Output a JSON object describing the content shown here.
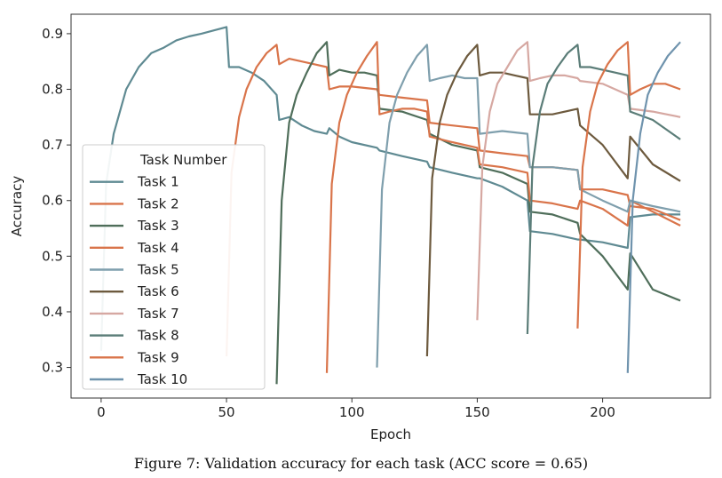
{
  "caption": "Figure 7: Validation accuracy for each task (ACC score = 0.65)",
  "chart_data": {
    "type": "line",
    "title": "",
    "xlabel": "Epoch",
    "ylabel": "Accuracy",
    "xlim": [
      -12,
      243
    ],
    "ylim": [
      0.245,
      0.935
    ],
    "xticks": [
      0,
      50,
      100,
      150,
      200
    ],
    "yticks": [
      0.3,
      0.4,
      0.5,
      0.6,
      0.7,
      0.8,
      0.9
    ],
    "grid": false,
    "legend": {
      "title": "Task Number",
      "placement": "lower-left"
    },
    "series": [
      {
        "name": "Task 1",
        "color": "#5f8a92",
        "points": [
          [
            0,
            0.33
          ],
          [
            2,
            0.63
          ],
          [
            5,
            0.72
          ],
          [
            10,
            0.8
          ],
          [
            15,
            0.84
          ],
          [
            20,
            0.865
          ],
          [
            25,
            0.875
          ],
          [
            30,
            0.888
          ],
          [
            35,
            0.895
          ],
          [
            40,
            0.9
          ],
          [
            45,
            0.906
          ],
          [
            50,
            0.912
          ],
          [
            51,
            0.84
          ],
          [
            55,
            0.84
          ],
          [
            60,
            0.83
          ],
          [
            65,
            0.815
          ],
          [
            70,
            0.79
          ],
          [
            71,
            0.745
          ],
          [
            75,
            0.75
          ],
          [
            80,
            0.735
          ],
          [
            85,
            0.725
          ],
          [
            90,
            0.72
          ],
          [
            91,
            0.73
          ],
          [
            95,
            0.715
          ],
          [
            100,
            0.705
          ],
          [
            110,
            0.695
          ],
          [
            111,
            0.69
          ],
          [
            120,
            0.68
          ],
          [
            130,
            0.67
          ],
          [
            131,
            0.66
          ],
          [
            140,
            0.65
          ],
          [
            150,
            0.64
          ],
          [
            151,
            0.64
          ],
          [
            160,
            0.625
          ],
          [
            170,
            0.6
          ],
          [
            171,
            0.545
          ],
          [
            180,
            0.54
          ],
          [
            190,
            0.53
          ],
          [
            191,
            0.53
          ],
          [
            200,
            0.525
          ],
          [
            210,
            0.515
          ],
          [
            211,
            0.57
          ],
          [
            220,
            0.575
          ],
          [
            231,
            0.575
          ]
        ]
      },
      {
        "name": "Task 2",
        "color": "#d9744a",
        "points": [
          [
            50,
            0.32
          ],
          [
            52,
            0.65
          ],
          [
            55,
            0.75
          ],
          [
            58,
            0.8
          ],
          [
            62,
            0.84
          ],
          [
            66,
            0.865
          ],
          [
            70,
            0.88
          ],
          [
            71,
            0.845
          ],
          [
            75,
            0.855
          ],
          [
            80,
            0.85
          ],
          [
            85,
            0.845
          ],
          [
            90,
            0.84
          ],
          [
            91,
            0.8
          ],
          [
            95,
            0.805
          ],
          [
            100,
            0.805
          ],
          [
            110,
            0.8
          ],
          [
            111,
            0.79
          ],
          [
            120,
            0.785
          ],
          [
            130,
            0.78
          ],
          [
            131,
            0.74
          ],
          [
            140,
            0.735
          ],
          [
            150,
            0.73
          ],
          [
            151,
            0.69
          ],
          [
            160,
            0.685
          ],
          [
            170,
            0.68
          ],
          [
            171,
            0.66
          ],
          [
            180,
            0.66
          ],
          [
            190,
            0.655
          ],
          [
            191,
            0.62
          ],
          [
            200,
            0.62
          ],
          [
            210,
            0.61
          ],
          [
            211,
            0.59
          ],
          [
            220,
            0.585
          ],
          [
            231,
            0.565
          ]
        ]
      },
      {
        "name": "Task 3",
        "color": "#4f6e5a",
        "points": [
          [
            70,
            0.27
          ],
          [
            72,
            0.6
          ],
          [
            75,
            0.74
          ],
          [
            78,
            0.79
          ],
          [
            82,
            0.83
          ],
          [
            86,
            0.865
          ],
          [
            90,
            0.885
          ],
          [
            91,
            0.825
          ],
          [
            95,
            0.835
          ],
          [
            100,
            0.83
          ],
          [
            105,
            0.83
          ],
          [
            110,
            0.825
          ],
          [
            111,
            0.765
          ],
          [
            120,
            0.76
          ],
          [
            130,
            0.745
          ],
          [
            131,
            0.72
          ],
          [
            140,
            0.7
          ],
          [
            150,
            0.69
          ],
          [
            151,
            0.66
          ],
          [
            160,
            0.65
          ],
          [
            170,
            0.63
          ],
          [
            171,
            0.58
          ],
          [
            180,
            0.575
          ],
          [
            190,
            0.56
          ],
          [
            191,
            0.54
          ],
          [
            200,
            0.5
          ],
          [
            210,
            0.44
          ],
          [
            211,
            0.505
          ],
          [
            220,
            0.44
          ],
          [
            231,
            0.42
          ]
        ]
      },
      {
        "name": "Task 4",
        "color": "#d9744a",
        "points": [
          [
            90,
            0.29
          ],
          [
            92,
            0.63
          ],
          [
            95,
            0.74
          ],
          [
            98,
            0.79
          ],
          [
            102,
            0.83
          ],
          [
            106,
            0.86
          ],
          [
            110,
            0.885
          ],
          [
            111,
            0.755
          ],
          [
            115,
            0.76
          ],
          [
            120,
            0.765
          ],
          [
            125,
            0.765
          ],
          [
            130,
            0.76
          ],
          [
            131,
            0.715
          ],
          [
            140,
            0.705
          ],
          [
            150,
            0.695
          ],
          [
            151,
            0.665
          ],
          [
            160,
            0.66
          ],
          [
            170,
            0.65
          ],
          [
            171,
            0.6
          ],
          [
            180,
            0.595
          ],
          [
            190,
            0.585
          ],
          [
            191,
            0.6
          ],
          [
            200,
            0.585
          ],
          [
            210,
            0.555
          ],
          [
            211,
            0.6
          ],
          [
            220,
            0.58
          ],
          [
            231,
            0.555
          ]
        ]
      },
      {
        "name": "Task 5",
        "color": "#7f9fad",
        "points": [
          [
            110,
            0.3
          ],
          [
            112,
            0.62
          ],
          [
            115,
            0.74
          ],
          [
            118,
            0.79
          ],
          [
            122,
            0.83
          ],
          [
            126,
            0.86
          ],
          [
            130,
            0.88
          ],
          [
            131,
            0.815
          ],
          [
            135,
            0.82
          ],
          [
            140,
            0.825
          ],
          [
            145,
            0.82
          ],
          [
            150,
            0.82
          ],
          [
            151,
            0.72
          ],
          [
            160,
            0.725
          ],
          [
            170,
            0.72
          ],
          [
            171,
            0.66
          ],
          [
            180,
            0.66
          ],
          [
            190,
            0.655
          ],
          [
            191,
            0.62
          ],
          [
            200,
            0.6
          ],
          [
            210,
            0.58
          ],
          [
            211,
            0.6
          ],
          [
            220,
            0.59
          ],
          [
            231,
            0.58
          ]
        ]
      },
      {
        "name": "Task 6",
        "color": "#6d5a3e",
        "points": [
          [
            130,
            0.32
          ],
          [
            132,
            0.64
          ],
          [
            135,
            0.74
          ],
          [
            138,
            0.79
          ],
          [
            142,
            0.83
          ],
          [
            146,
            0.86
          ],
          [
            150,
            0.88
          ],
          [
            151,
            0.825
          ],
          [
            155,
            0.83
          ],
          [
            160,
            0.83
          ],
          [
            165,
            0.825
          ],
          [
            170,
            0.82
          ],
          [
            171,
            0.755
          ],
          [
            180,
            0.755
          ],
          [
            190,
            0.765
          ],
          [
            191,
            0.735
          ],
          [
            200,
            0.7
          ],
          [
            210,
            0.64
          ],
          [
            211,
            0.715
          ],
          [
            220,
            0.665
          ],
          [
            231,
            0.635
          ]
        ]
      },
      {
        "name": "Task 7",
        "color": "#d6a8a2",
        "points": [
          [
            150,
            0.385
          ],
          [
            152,
            0.66
          ],
          [
            155,
            0.76
          ],
          [
            158,
            0.81
          ],
          [
            162,
            0.84
          ],
          [
            166,
            0.87
          ],
          [
            170,
            0.885
          ],
          [
            171,
            0.815
          ],
          [
            175,
            0.82
          ],
          [
            180,
            0.825
          ],
          [
            185,
            0.825
          ],
          [
            190,
            0.82
          ],
          [
            191,
            0.815
          ],
          [
            200,
            0.81
          ],
          [
            210,
            0.79
          ],
          [
            211,
            0.765
          ],
          [
            220,
            0.76
          ],
          [
            231,
            0.75
          ]
        ]
      },
      {
        "name": "Task 8",
        "color": "#5b7d78",
        "points": [
          [
            170,
            0.36
          ],
          [
            172,
            0.66
          ],
          [
            175,
            0.76
          ],
          [
            178,
            0.81
          ],
          [
            182,
            0.84
          ],
          [
            186,
            0.865
          ],
          [
            190,
            0.88
          ],
          [
            191,
            0.84
          ],
          [
            195,
            0.84
          ],
          [
            200,
            0.835
          ],
          [
            205,
            0.83
          ],
          [
            210,
            0.825
          ],
          [
            211,
            0.76
          ],
          [
            220,
            0.745
          ],
          [
            231,
            0.71
          ]
        ]
      },
      {
        "name": "Task 9",
        "color": "#d9744a",
        "points": [
          [
            190,
            0.37
          ],
          [
            192,
            0.66
          ],
          [
            195,
            0.76
          ],
          [
            198,
            0.81
          ],
          [
            202,
            0.845
          ],
          [
            206,
            0.87
          ],
          [
            210,
            0.885
          ],
          [
            211,
            0.79
          ],
          [
            215,
            0.8
          ],
          [
            220,
            0.81
          ],
          [
            225,
            0.81
          ],
          [
            231,
            0.8
          ]
        ]
      },
      {
        "name": "Task 10",
        "color": "#6f93ad",
        "points": [
          [
            210,
            0.29
          ],
          [
            212,
            0.6
          ],
          [
            215,
            0.72
          ],
          [
            218,
            0.79
          ],
          [
            222,
            0.83
          ],
          [
            226,
            0.86
          ],
          [
            231,
            0.885
          ]
        ]
      }
    ]
  }
}
